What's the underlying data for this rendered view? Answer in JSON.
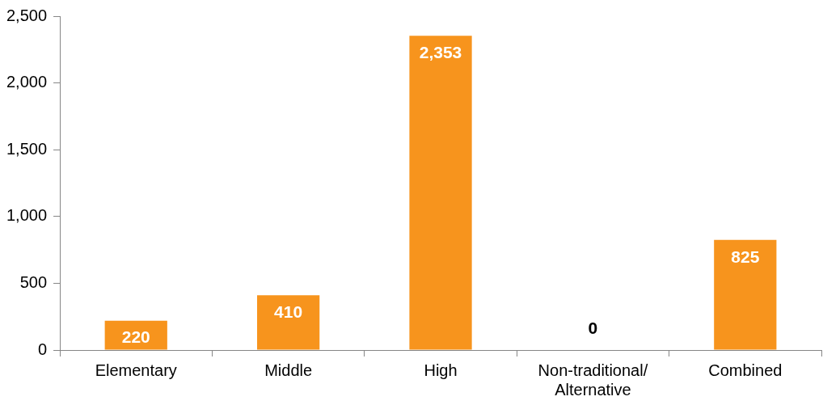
{
  "chart_data": {
    "type": "bar",
    "categories": [
      "Elementary",
      "Middle",
      "High",
      "Non-traditional/ Alternative",
      "Combined"
    ],
    "values": [
      220,
      410,
      2353,
      0,
      825
    ],
    "color": "#f7941d",
    "ylim": [
      0,
      2500
    ],
    "yticks": [
      {
        "value": 0,
        "label": "0"
      },
      {
        "value": 500,
        "label": "500"
      },
      {
        "value": 1000,
        "label": "1,000"
      },
      {
        "value": 1500,
        "label": "1,500"
      },
      {
        "value": 2000,
        "label": "2,000"
      },
      {
        "value": 2500,
        "label": "2,500"
      }
    ],
    "value_labels": [
      "220",
      "410",
      "2,353",
      "0",
      "825"
    ],
    "grid": false,
    "legend": false
  }
}
